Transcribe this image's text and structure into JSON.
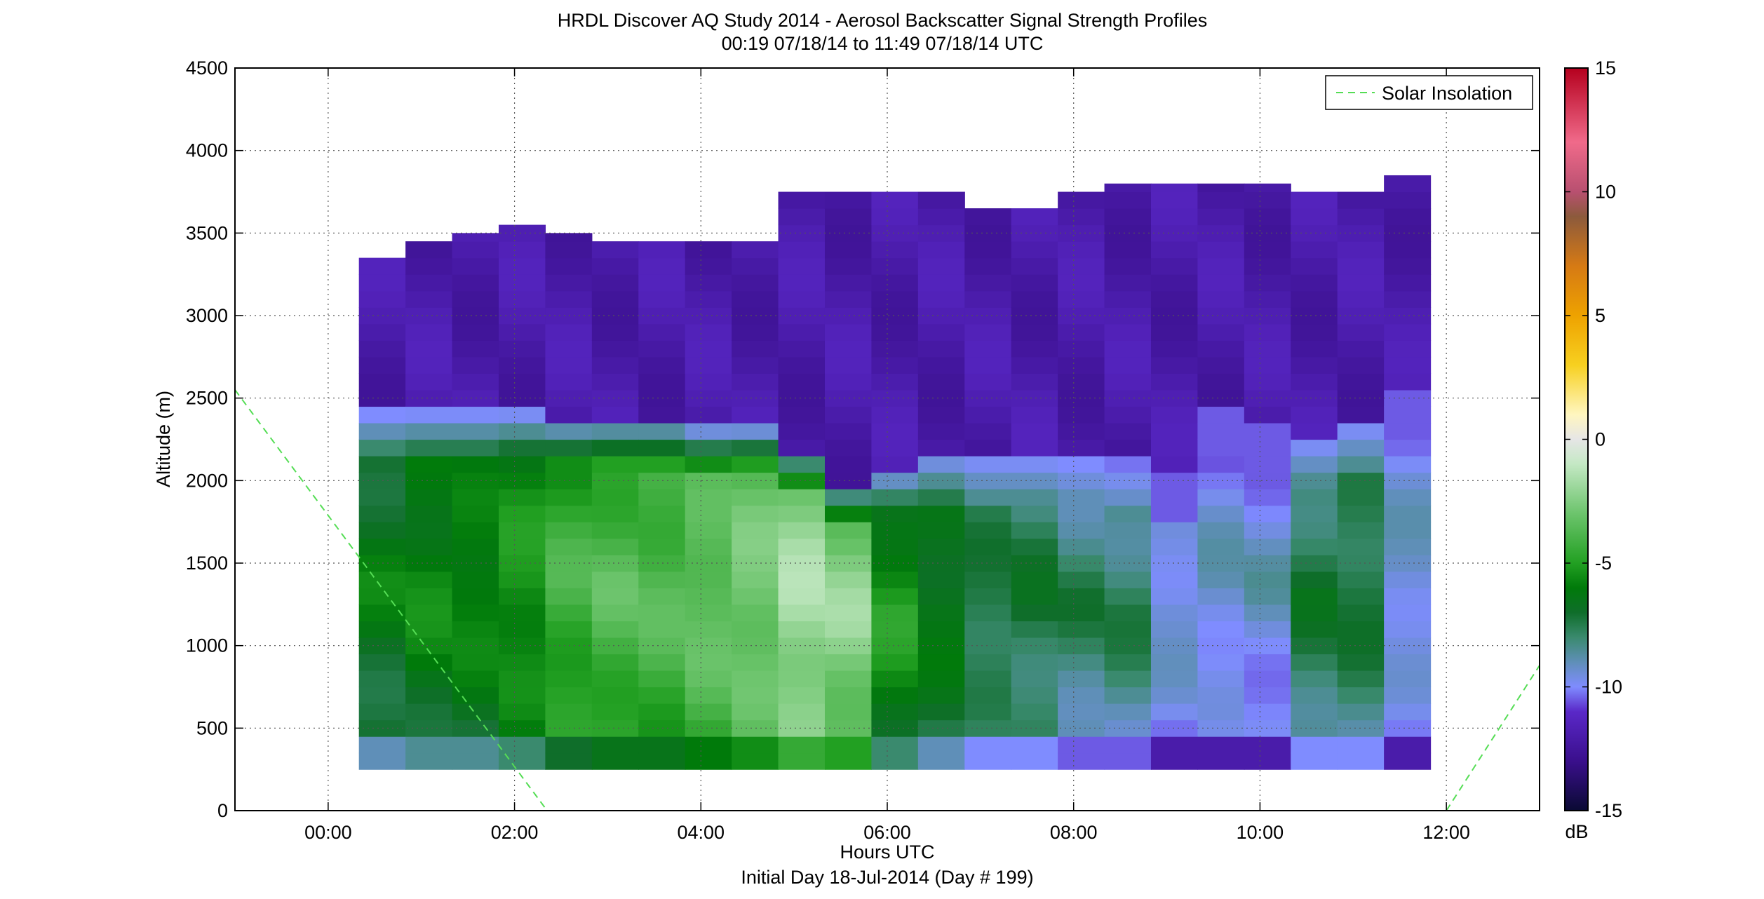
{
  "chart_data": {
    "type": "heatmap",
    "title": "HRDL Discover AQ Study 2014 - Aerosol Backscatter Signal Strength Profiles",
    "subtitle": "00:19 07/18/14 to 11:49 07/18/14  UTC",
    "xlabel": "Hours UTC",
    "xlabel2": "Initial Day 18-Jul-2014 (Day # 199)",
    "ylabel": "Altitude (m)",
    "xlim": [
      -1,
      13
    ],
    "ylim": [
      0,
      4500
    ],
    "xticks": [
      0,
      2,
      4,
      6,
      8,
      10,
      12
    ],
    "xtick_labels": [
      "00:00",
      "02:00",
      "04:00",
      "06:00",
      "08:00",
      "10:00",
      "12:00"
    ],
    "yticks": [
      0,
      500,
      1000,
      1500,
      2000,
      2500,
      3000,
      3500,
      4000,
      4500
    ],
    "ytick_labels": [
      "0",
      "500",
      "1000",
      "1500",
      "2000",
      "2500",
      "3000",
      "3500",
      "4000",
      "4500"
    ],
    "grid": true,
    "legend": {
      "placement": "top-right",
      "entries": [
        "Solar Insolation"
      ]
    },
    "colorbar": {
      "label": "dB",
      "range": [
        -15,
        15
      ],
      "ticks": [
        -15,
        -10,
        -5,
        0,
        5,
        10,
        15
      ],
      "tick_labels": [
        "-15",
        "-10",
        "-5",
        "0",
        "5",
        "10",
        "15"
      ],
      "colormap_stops": [
        [
          -15,
          "#0a0a33"
        ],
        [
          -13,
          "#3a0f8c"
        ],
        [
          -11,
          "#5a28c8"
        ],
        [
          -10,
          "#7f8cff"
        ],
        [
          -9,
          "#5f8fb8"
        ],
        [
          -8,
          "#3a8a6e"
        ],
        [
          -7,
          "#0f6e2a"
        ],
        [
          -6,
          "#007a0a"
        ],
        [
          -5,
          "#22a022"
        ],
        [
          -3,
          "#6cc46c"
        ],
        [
          -1,
          "#c4e8c4"
        ],
        [
          0,
          "#e6e6e6"
        ],
        [
          1,
          "#fff6c0"
        ],
        [
          3,
          "#f7d020"
        ],
        [
          5,
          "#eea200"
        ],
        [
          7,
          "#d67a14"
        ],
        [
          9,
          "#8c5a3c"
        ],
        [
          10,
          "#b85070"
        ],
        [
          12,
          "#f06a8a"
        ],
        [
          15,
          "#b5001e"
        ]
      ]
    },
    "profiles": {
      "column_width_hours": 0.5,
      "bottom_altitude": 250,
      "start_times": [
        0.33,
        0.83,
        1.33,
        1.83,
        2.33,
        2.83,
        3.33,
        3.83,
        4.33,
        4.83,
        5.33,
        5.83,
        6.33,
        6.83,
        7.33,
        7.83,
        8.33,
        8.83,
        9.33,
        9.83,
        10.33,
        10.83,
        11.33
      ],
      "top_altitudes": [
        3350,
        3450,
        3500,
        3550,
        3500,
        3450,
        3450,
        3450,
        3450,
        3750,
        3750,
        3750,
        3750,
        3650,
        3650,
        3750,
        3800,
        3800,
        3800,
        3800,
        3750,
        3750,
        3850
      ],
      "boundary_layer_tops": [
        2300,
        2300,
        2300,
        2300,
        2250,
        2250,
        2250,
        2200,
        2200,
        2050,
        1850,
        1950,
        2050,
        2050,
        2050,
        2050,
        2000,
        1950,
        2300,
        2250,
        2150,
        2250,
        2450
      ],
      "mean_aerosol_db": [
        -6,
        -5.5,
        -5.5,
        -5,
        -4,
        -3.5,
        -3.5,
        -3,
        -2.5,
        -1.5,
        -2,
        -5,
        -6,
        -7,
        -7,
        -7.5,
        -7.5,
        -9,
        -9,
        -9,
        -7,
        -7,
        -9
      ],
      "free_troposphere_db": -12
    },
    "series": [
      {
        "name": "Solar Insolation",
        "x": [
          -1,
          2.35
        ],
        "y": [
          2550,
          0
        ]
      },
      {
        "name": "Solar Insolation",
        "x": [
          12,
          13
        ],
        "y": [
          0,
          880
        ]
      }
    ]
  }
}
